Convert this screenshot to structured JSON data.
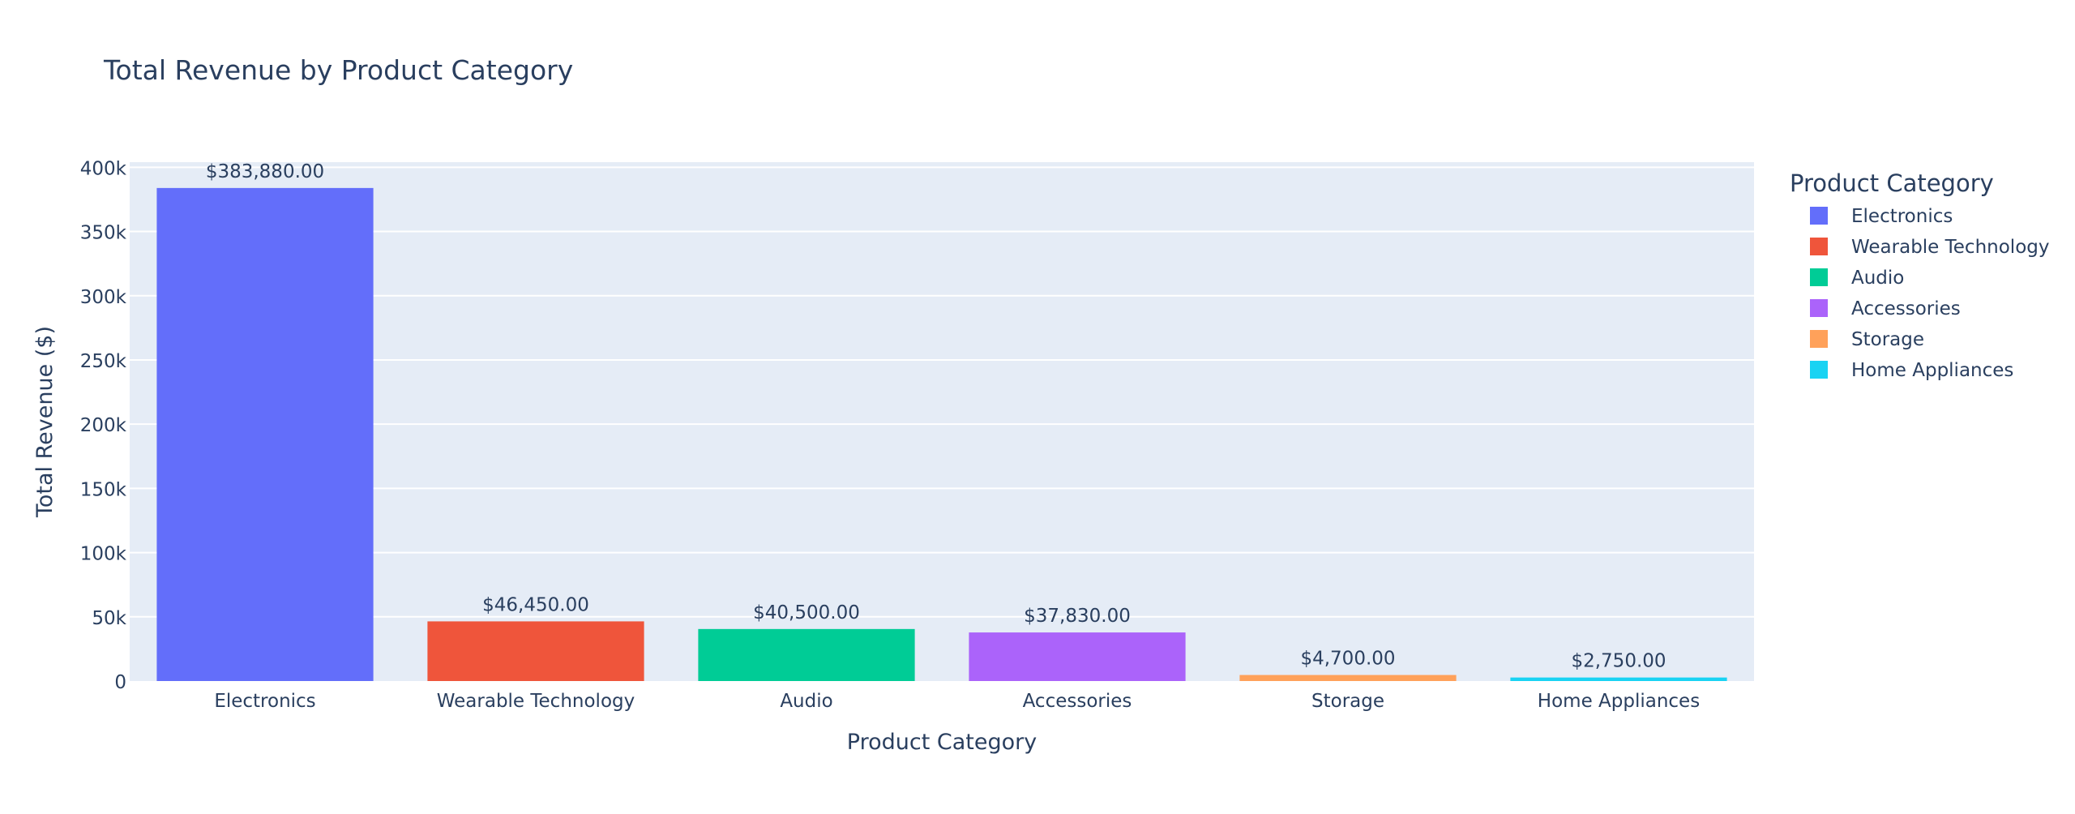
{
  "chart_data": {
    "type": "bar",
    "title": "Total Revenue by Product Category",
    "xlabel": "Product Category",
    "ylabel": "Total Revenue ($)",
    "categories": [
      "Electronics",
      "Wearable Technology",
      "Audio",
      "Accessories",
      "Storage",
      "Home Appliances"
    ],
    "values": [
      383880,
      46450,
      40500,
      37830,
      4700,
      2750
    ],
    "value_labels": [
      "$383,880.00",
      "$46,450.00",
      "$40,500.00",
      "$37,830.00",
      "$4,700.00",
      "$2,750.00"
    ],
    "colors": [
      "#636efa",
      "#EF553B",
      "#00cc96",
      "#ab63fa",
      "#FFA15A",
      "#19d3f3"
    ],
    "ylim": [
      0,
      404000
    ],
    "yticks": [
      0,
      50000,
      100000,
      150000,
      200000,
      250000,
      300000,
      350000,
      400000
    ],
    "ytick_labels": [
      "0",
      "50k",
      "100k",
      "150k",
      "200k",
      "250k",
      "300k",
      "350k",
      "400k"
    ],
    "grid": true,
    "legend": {
      "title": "Product Category",
      "position": "right",
      "entries": [
        "Electronics",
        "Wearable Technology",
        "Audio",
        "Accessories",
        "Storage",
        "Home Appliances"
      ]
    },
    "plot_bgcolor": "#e5ecf6"
  }
}
